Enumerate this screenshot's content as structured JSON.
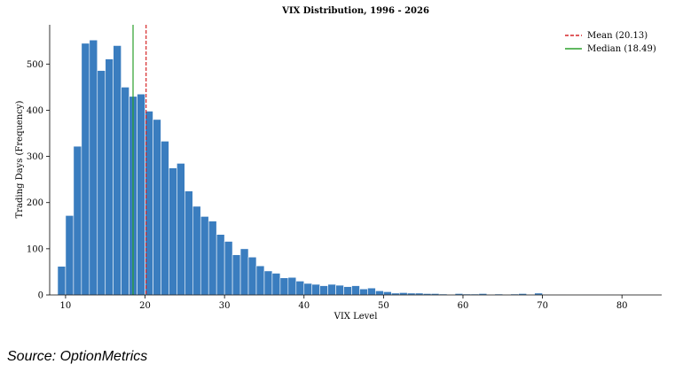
{
  "source_note": "Source: OptionMetrics",
  "chart_data": {
    "type": "bar",
    "title": "VIX Distribution, 1996 - 2026",
    "xlabel": "VIX Level",
    "ylabel": "Trading Days (Frequency)",
    "xlim": [
      8,
      85
    ],
    "ylim": [
      0,
      585
    ],
    "xticks": [
      10,
      20,
      30,
      40,
      50,
      60,
      70,
      80
    ],
    "yticks": [
      0,
      100,
      200,
      300,
      400,
      500
    ],
    "bin_start": 9,
    "bin_width": 1,
    "bar_color": "#3a7dbf",
    "values": [
      62,
      172,
      322,
      545,
      552,
      486,
      511,
      540,
      450,
      430,
      435,
      398,
      380,
      333,
      275,
      285,
      225,
      192,
      170,
      160,
      131,
      116,
      87,
      100,
      82,
      63,
      52,
      47,
      37,
      38,
      30,
      25,
      23,
      20,
      23,
      21,
      18,
      20,
      13,
      15,
      9,
      7,
      4,
      4,
      4,
      2,
      1,
      1,
      1,
      0,
      1,
      1,
      1,
      0,
      0,
      0,
      0,
      0,
      0,
      0,
      0,
      0,
      0,
      0,
      0,
      0,
      0,
      0,
      0,
      0,
      0,
      0,
      0,
      0,
      0,
      0,
      0,
      0
    ],
    "sparse_bins": [
      {
        "x": 52,
        "value": 5
      },
      {
        "x": 53,
        "value": 4
      },
      {
        "x": 54,
        "value": 4
      },
      {
        "x": 55,
        "value": 3
      },
      {
        "x": 56,
        "value": 3
      },
      {
        "x": 57,
        "value": 2
      },
      {
        "x": 59,
        "value": 3
      },
      {
        "x": 60,
        "value": 2
      },
      {
        "x": 61,
        "value": 2
      },
      {
        "x": 62,
        "value": 3
      },
      {
        "x": 64,
        "value": 2
      },
      {
        "x": 66,
        "value": 2
      },
      {
        "x": 67,
        "value": 3
      },
      {
        "x": 69,
        "value": 4
      },
      {
        "x": 72,
        "value": 1
      },
      {
        "x": 75,
        "value": 1
      },
      {
        "x": 76,
        "value": 1
      },
      {
        "x": 78,
        "value": 1
      },
      {
        "x": 80,
        "value": 1
      }
    ],
    "mean": {
      "label": "Mean (20.13)",
      "value": 20.13,
      "color": "#d62728",
      "style": "dashed"
    },
    "median": {
      "label": "Median (18.49)",
      "value": 18.49,
      "color": "#2ca02c",
      "style": "solid"
    },
    "legend_position": "top-right",
    "grid": false
  }
}
